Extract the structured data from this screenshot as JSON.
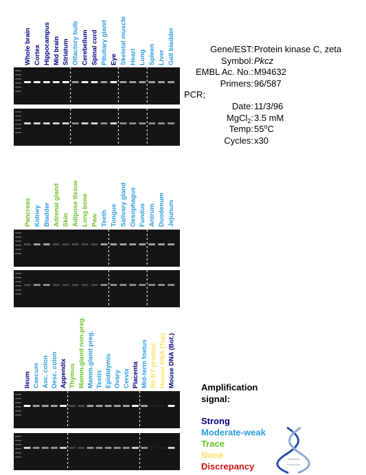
{
  "panels": [
    {
      "lanes": [
        {
          "label": "Whole brain",
          "color": "#00007f"
        },
        {
          "label": "Cortex",
          "color": "#00007f"
        },
        {
          "label": "Hippocampus",
          "color": "#00007f"
        },
        {
          "label": "Mid brain",
          "color": "#00007f"
        },
        {
          "label": "Striatum",
          "color": "#00007f"
        },
        {
          "label": "Olfactory bulb",
          "color": "#2b9be0"
        },
        {
          "label": "Cerebellum",
          "color": "#00007f"
        },
        {
          "label": "Spinal cord",
          "color": "#00007f"
        },
        {
          "label": "Pituitary gland",
          "color": "#2b9be0"
        },
        {
          "label": "Eye",
          "color": "#00007f"
        },
        {
          "label": "Skeletal muscle",
          "color": "#2b9be0"
        },
        {
          "label": "Heart",
          "color": "#2b9be0"
        },
        {
          "label": "Lung",
          "color": "#2b9be0"
        },
        {
          "label": "Spleen",
          "color": "#2b9be0"
        },
        {
          "label": "Liver",
          "color": "#2b9be0"
        },
        {
          "label": "Gall bladder",
          "color": "#2b9be0"
        }
      ]
    },
    {
      "lanes": [
        {
          "label": "Pancreas",
          "color": "#6cc024"
        },
        {
          "label": "Kidney",
          "color": "#2b9be0"
        },
        {
          "label": "Bladder",
          "color": "#2b9be0"
        },
        {
          "label": "Adrenal gland",
          "color": "#6cc024"
        },
        {
          "label": "Skin",
          "color": "#6cc024"
        },
        {
          "label": "Adipose tissue",
          "color": "#6cc024"
        },
        {
          "label": "Long bone",
          "color": "#6cc024"
        },
        {
          "label": "Paw",
          "color": "#6cc024"
        },
        {
          "label": "Teeth",
          "color": "#2b9be0"
        },
        {
          "label": "Tongue",
          "color": "#2b9be0"
        },
        {
          "label": "Salivary gland",
          "color": "#2b9be0"
        },
        {
          "label": "Oesophagus",
          "color": "#2b9be0"
        },
        {
          "label": "Fundus",
          "color": "#2b9be0"
        },
        {
          "label": "Antrum",
          "color": "#2b9be0"
        },
        {
          "label": "Duodenum",
          "color": "#2b9be0"
        },
        {
          "label": "Jejunum",
          "color": "#2b9be0"
        }
      ]
    },
    {
      "lanes": [
        {
          "label": "Ileum",
          "color": "#00007f"
        },
        {
          "label": "Caecum",
          "color": "#2b9be0"
        },
        {
          "label": "Asc. colon",
          "color": "#2b9be0"
        },
        {
          "label": "Desc. colon",
          "color": "#2b9be0"
        },
        {
          "label": "Appendix",
          "color": "#00007f"
        },
        {
          "label": "Thymus",
          "color": "#6cc024"
        },
        {
          "label": "Mamm.gland non-preg.",
          "color": "#6cc024"
        },
        {
          "label": "Mamm.gland preg.",
          "color": "#2b9be0"
        },
        {
          "label": "Testis",
          "color": "#2b9be0"
        },
        {
          "label": "Epididymis",
          "color": "#2b9be0"
        },
        {
          "label": "Ovary",
          "color": "#2b9be0"
        },
        {
          "label": "Cervix",
          "color": "#2b9be0"
        },
        {
          "label": "Placenta",
          "color": "#00007f"
        },
        {
          "label": "Mid-term foetus",
          "color": "#2b9be0"
        },
        {
          "label": "No RT product",
          "color": "#ffe060"
        },
        {
          "label": "Human DNA (Top)",
          "color": "#ffe060"
        },
        {
          "label": "Mouse DNA (Bot.)",
          "color": "#00007f"
        }
      ]
    }
  ],
  "info": {
    "gene": {
      "label": "Gene/EST:",
      "value": "Protein kinase C, zeta"
    },
    "symbol": {
      "label": "Symbol:",
      "value": "Pkcz"
    },
    "embl": {
      "label": "EMBL Ac. No.:",
      "value": "M94632"
    },
    "primers": {
      "label": "Primers:",
      "value": "96/587"
    },
    "pcr": "PCR;",
    "date": {
      "label": "Date:",
      "value": "11/3/96"
    },
    "mgcl": {
      "label": "MgCl",
      "sub": "2",
      "colon": ":",
      "value": "3.5 mM"
    },
    "temp": {
      "label": "Temp:",
      "value": "55",
      "sup": "o",
      "unit": "C"
    },
    "cycles": {
      "label": "Cycles:",
      "value": "x30"
    }
  },
  "legend": {
    "title_line1": "Amplification",
    "title_line2": "signal:",
    "items": [
      {
        "label": "Strong",
        "color": "#00007f"
      },
      {
        "label": "Moderate-weak",
        "color": "#2b9be0"
      },
      {
        "label": "Trace",
        "color": "#6cc024"
      },
      {
        "label": "None",
        "color": "#ffe060"
      },
      {
        "label": "Discrepancy",
        "color": "#cc1111"
      }
    ]
  }
}
